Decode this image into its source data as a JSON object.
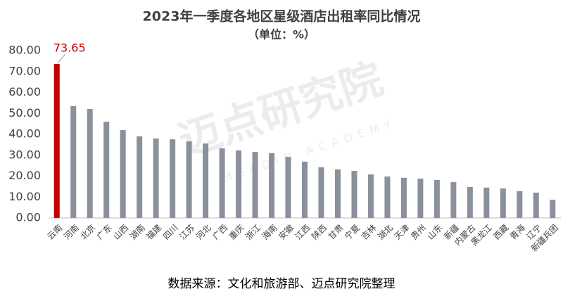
{
  "chart_data": {
    "type": "bar",
    "title": "2023年一季度各地区星级酒店出租率同比情况",
    "subtitle": "（单位：%）",
    "source": "数据来源：文化和旅游部、迈点研究院整理",
    "watermark": "迈点研究院",
    "watermark_sub": "MEADIN ACADEMY",
    "categories": [
      "云南",
      "河南",
      "北京",
      "广东",
      "山西",
      "湖南",
      "福建",
      "四川",
      "江苏",
      "河北",
      "广西",
      "重庆",
      "浙江",
      "海南",
      "安徽",
      "江西",
      "陕西",
      "甘肃",
      "宁夏",
      "吉林",
      "湖北",
      "天津",
      "贵州",
      "山东",
      "新疆",
      "内蒙古",
      "黑龙江",
      "西藏",
      "青海",
      "辽宁",
      "新疆兵团"
    ],
    "values": [
      73.65,
      53.5,
      52.1,
      46,
      42,
      39,
      38,
      37.6,
      36.6,
      35.6,
      33.3,
      32.3,
      31.6,
      31,
      29.2,
      26.9,
      24.2,
      23.2,
      22.5,
      20.8,
      19.8,
      19.2,
      18.8,
      18.2,
      17.1,
      14.8,
      14.5,
      14.1,
      12.8,
      12.1,
      8.7
    ],
    "value_labels": [
      "73.65",
      null,
      null,
      null,
      null,
      null,
      null,
      null,
      null,
      null,
      null,
      null,
      null,
      null,
      null,
      null,
      null,
      null,
      null,
      null,
      null,
      null,
      null,
      null,
      null,
      null,
      null,
      null,
      null,
      null,
      null
    ],
    "colors": [
      "#c00000",
      "#8a909c",
      "#8a909c",
      "#8a909c",
      "#8a909c",
      "#8a909c",
      "#8a909c",
      "#8a909c",
      "#8a909c",
      "#8a909c",
      "#8a909c",
      "#8a909c",
      "#8a909c",
      "#8a909c",
      "#8a909c",
      "#8a909c",
      "#8a909c",
      "#8a909c",
      "#8a909c",
      "#8a909c",
      "#8a909c",
      "#8a909c",
      "#8a909c",
      "#8a909c",
      "#8a909c",
      "#8a909c",
      "#8a909c",
      "#8a909c",
      "#8a909c",
      "#8a909c",
      "#8a909c"
    ],
    "ylim": [
      0,
      80
    ],
    "yticks": [
      {
        "value": 0,
        "label": "0.00"
      },
      {
        "value": 10,
        "label": "10.00"
      },
      {
        "value": 20,
        "label": "20.00"
      },
      {
        "value": 30,
        "label": "30.00"
      },
      {
        "value": 40,
        "label": "40.00"
      },
      {
        "value": 50,
        "label": "50.00"
      },
      {
        "value": 60,
        "label": "60.00"
      },
      {
        "value": 70,
        "label": "70.00"
      },
      {
        "value": 80,
        "label": "80.00"
      }
    ],
    "grid": false
  }
}
